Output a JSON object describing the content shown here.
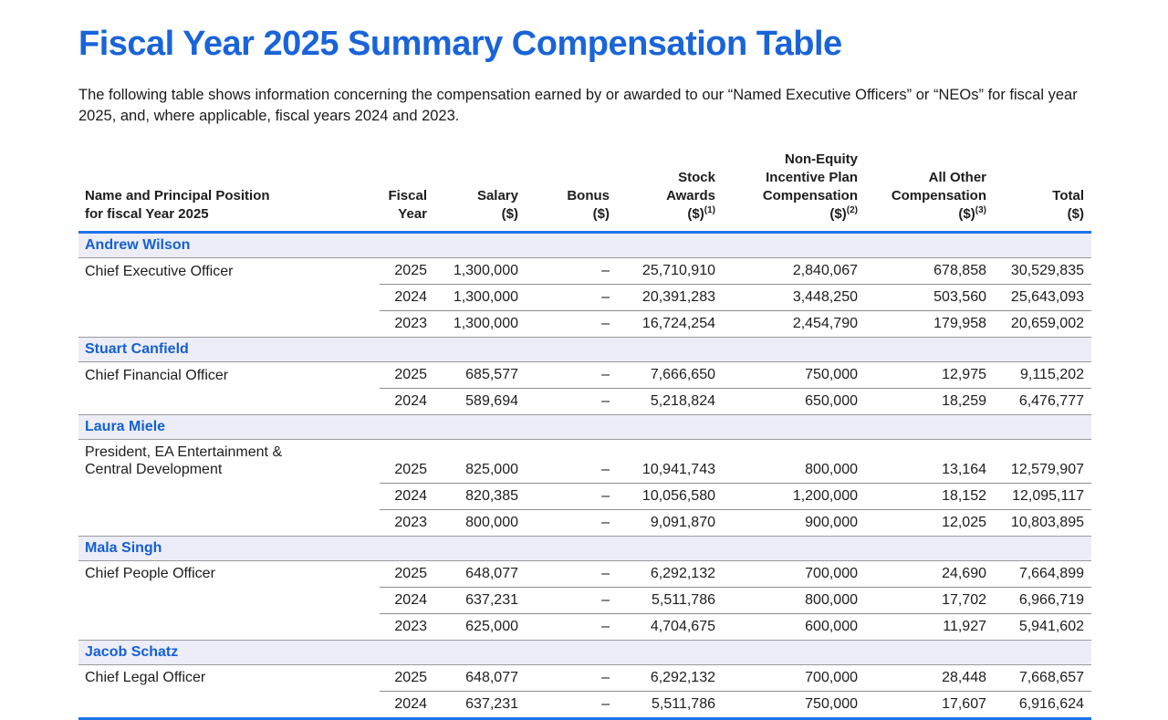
{
  "page": {
    "title": "Fiscal Year 2025 Summary Compensation Table",
    "intro": "The following table shows information concerning the compensation earned by or awarded to our “Named Executive Officers” or “NEOs” for fiscal year 2025, and, where applicable, fiscal years 2024 and 2023."
  },
  "comp_table": {
    "accent_blue": "#1e73e8",
    "title_blue": "#1a64d9",
    "name_row_bg": "#ecedf6",
    "columns": [
      {
        "label": "Name and Principal Position\nfor fiscal Year 2025"
      },
      {
        "label": "Fiscal\nYear"
      },
      {
        "label": "Salary\n($)"
      },
      {
        "label": "Bonus\n($)"
      },
      {
        "label": "Stock\nAwards\n($)",
        "footnote": "(1)"
      },
      {
        "label": "Non-Equity\nIncentive Plan\nCompensation\n($)",
        "footnote": "(2)"
      },
      {
        "label": "All Other\nCompensation\n($)",
        "footnote": "(3)"
      },
      {
        "label": "Total\n($)"
      }
    ],
    "sections": [
      {
        "name": "Andrew Wilson",
        "position": "Chief Executive Officer",
        "rows": [
          {
            "year": "2025",
            "salary": "1,300,000",
            "bonus": "–",
            "stock": "25,710,910",
            "neip": "2,840,067",
            "other": "678,858",
            "total": "30,529,835"
          },
          {
            "year": "2024",
            "salary": "1,300,000",
            "bonus": "–",
            "stock": "20,391,283",
            "neip": "3,448,250",
            "other": "503,560",
            "total": "25,643,093"
          },
          {
            "year": "2023",
            "salary": "1,300,000",
            "bonus": "–",
            "stock": "16,724,254",
            "neip": "2,454,790",
            "other": "179,958",
            "total": "20,659,002"
          }
        ]
      },
      {
        "name": "Stuart Canfield",
        "position": "Chief Financial Officer",
        "rows": [
          {
            "year": "2025",
            "salary": "685,577",
            "bonus": "–",
            "stock": "7,666,650",
            "neip": "750,000",
            "other": "12,975",
            "total": "9,115,202"
          },
          {
            "year": "2024",
            "salary": "589,694",
            "bonus": "–",
            "stock": "5,218,824",
            "neip": "650,000",
            "other": "18,259",
            "total": "6,476,777"
          }
        ]
      },
      {
        "name": "Laura Miele",
        "position": "President, EA Entertainment &\nCentral Development",
        "rows": [
          {
            "year": "2025",
            "salary": "825,000",
            "bonus": "–",
            "stock": "10,941,743",
            "neip": "800,000",
            "other": "13,164",
            "total": "12,579,907"
          },
          {
            "year": "2024",
            "salary": "820,385",
            "bonus": "–",
            "stock": "10,056,580",
            "neip": "1,200,000",
            "other": "18,152",
            "total": "12,095,117"
          },
          {
            "year": "2023",
            "salary": "800,000",
            "bonus": "–",
            "stock": "9,091,870",
            "neip": "900,000",
            "other": "12,025",
            "total": "10,803,895"
          }
        ]
      },
      {
        "name": "Mala Singh",
        "position": "Chief People Officer",
        "rows": [
          {
            "year": "2025",
            "salary": "648,077",
            "bonus": "–",
            "stock": "6,292,132",
            "neip": "700,000",
            "other": "24,690",
            "total": "7,664,899"
          },
          {
            "year": "2024",
            "salary": "637,231",
            "bonus": "–",
            "stock": "5,511,786",
            "neip": "800,000",
            "other": "17,702",
            "total": "6,966,719"
          },
          {
            "year": "2023",
            "salary": "625,000",
            "bonus": "–",
            "stock": "4,704,675",
            "neip": "600,000",
            "other": "11,927",
            "total": "5,941,602"
          }
        ]
      },
      {
        "name": "Jacob Schatz",
        "position": "Chief Legal Officer",
        "rows": [
          {
            "year": "2025",
            "salary": "648,077",
            "bonus": "–",
            "stock": "6,292,132",
            "neip": "700,000",
            "other": "28,448",
            "total": "7,668,657"
          },
          {
            "year": "2024",
            "salary": "637,231",
            "bonus": "–",
            "stock": "5,511,786",
            "neip": "750,000",
            "other": "17,607",
            "total": "6,916,624"
          }
        ]
      }
    ]
  }
}
